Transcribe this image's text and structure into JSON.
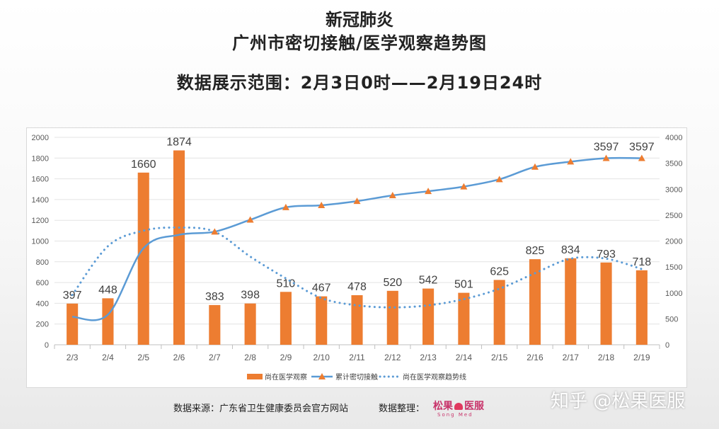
{
  "header": {
    "title_line1": "新冠肺炎",
    "title_line2": "广州市密切接触/医学观察趋势图",
    "range": "数据展示范围：2月3日0时——2月19日24时"
  },
  "footer": {
    "source": "数据来源：广东省卫生健康委员会官方网站",
    "organizer_label": "数据整理：",
    "brand_name_a": "松果",
    "brand_name_b": "医服",
    "brand_sub": "Song Med"
  },
  "watermark": "知乎 @松果医服",
  "colors": {
    "bar": "#ed7d31",
    "line": "#5b9bd5",
    "marker": "#ed7d31",
    "trend": "#5b9bd5"
  },
  "chart_data": {
    "type": "bar",
    "categories": [
      "2/3",
      "2/4",
      "2/5",
      "2/6",
      "2/7",
      "2/8",
      "2/9",
      "2/10",
      "2/11",
      "2/12",
      "2/13",
      "2/14",
      "2/15",
      "2/16",
      "2/17",
      "2/18",
      "2/19"
    ],
    "series": [
      {
        "name": "尚在医学观察",
        "type": "bar",
        "axis": "left",
        "values": [
          397,
          448,
          1660,
          1874,
          383,
          398,
          510,
          467,
          478,
          520,
          542,
          501,
          625,
          825,
          834,
          793,
          718
        ]
      },
      {
        "name": "累计密切接触",
        "type": "line",
        "axis": "right",
        "values": [
          540,
          580,
          1860,
          2120,
          2180,
          2410,
          2650,
          2690,
          2770,
          2880,
          2960,
          3050,
          3190,
          3430,
          3530,
          3597,
          3597
        ],
        "data_labels": [
          "",
          "",
          "",
          "",
          "",
          "",
          "",
          "",
          "",
          "",
          "",
          "",
          "",
          "",
          "",
          "3597",
          "3597"
        ]
      },
      {
        "name": "尚在医学观察趋势线",
        "type": "trend",
        "axis": "left",
        "values": [
          480,
          950,
          1100,
          1130,
          1090,
          850,
          640,
          450,
          380,
          360,
          380,
          440,
          540,
          690,
          830,
          830,
          730
        ]
      }
    ],
    "y_left": {
      "range": [
        0,
        2000
      ],
      "ticks": [
        0,
        200,
        400,
        600,
        800,
        1000,
        1200,
        1400,
        1600,
        1800,
        2000
      ]
    },
    "y_right": {
      "range": [
        0,
        4000
      ],
      "ticks": [
        0,
        500,
        1000,
        1500,
        2000,
        2500,
        3000,
        3500,
        4000
      ]
    },
    "legend": "bottom",
    "grid": true
  }
}
